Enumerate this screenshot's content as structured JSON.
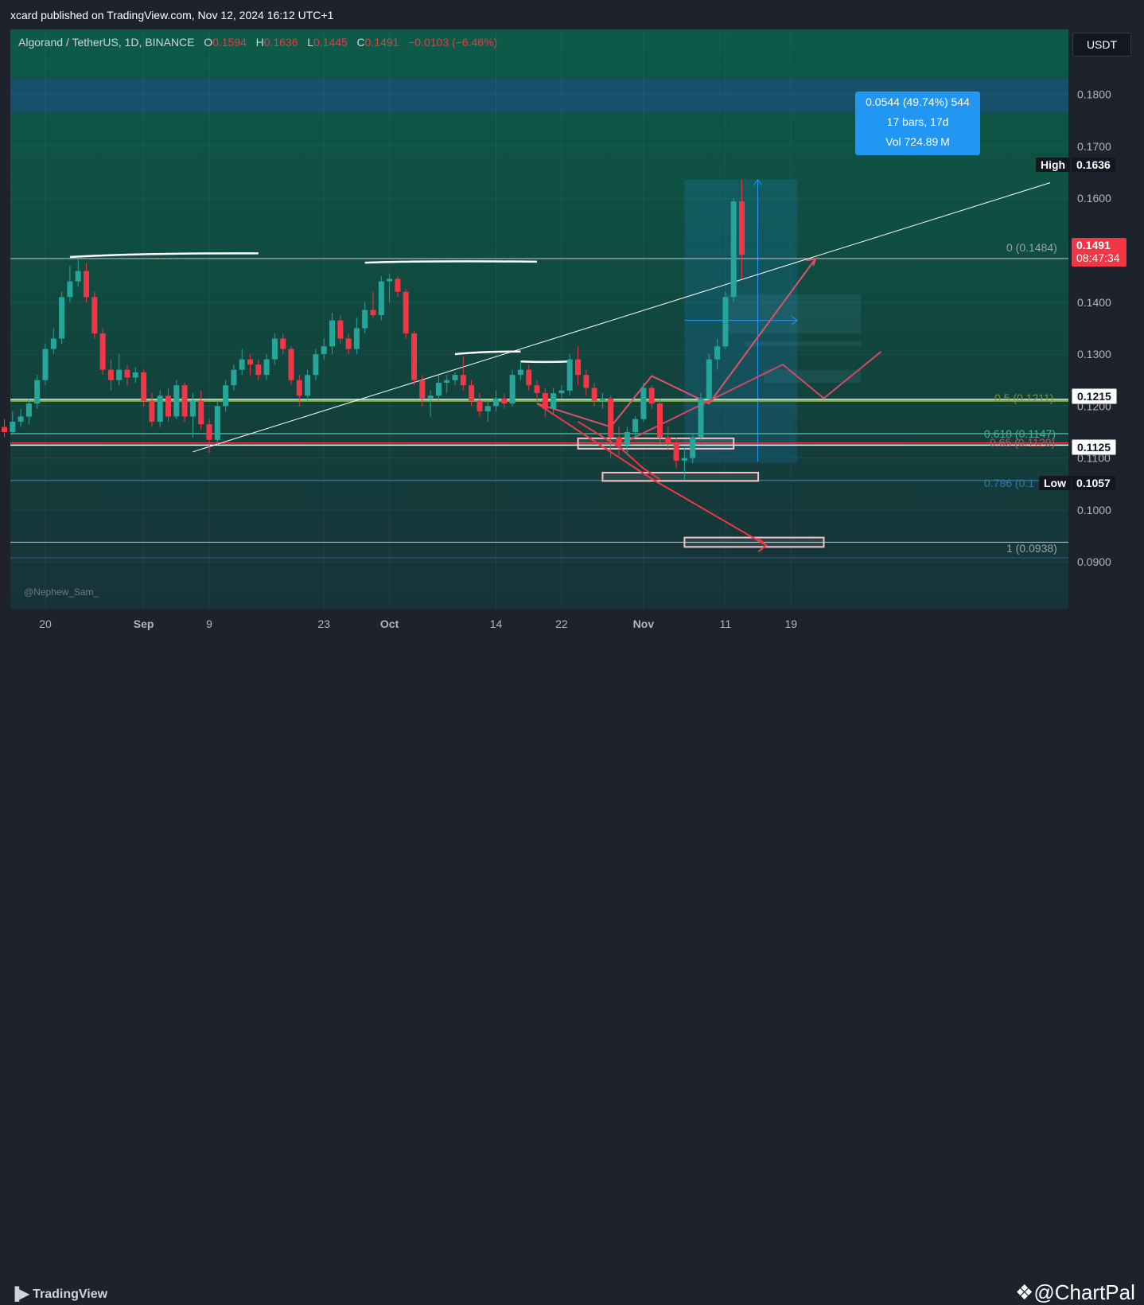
{
  "header": {
    "publisher": "xcard published on TradingView.com, Nov 12, 2024 16:12 UTC+1"
  },
  "symbol": {
    "name": "Algorand / TetherUS, 1D, BINANCE",
    "o_label": "O",
    "o": "0.1594",
    "h_label": "H",
    "h": "0.1636",
    "l_label": "L",
    "l": "0.1445",
    "c_label": "C",
    "c": "0.1491",
    "change": "−0.0103 (−6.46%)"
  },
  "currency": "USDT",
  "measure": {
    "line1": "0.0544 (49.74%) 544",
    "line2": "17 bars, 17d",
    "line3": "Vol 724.89 M"
  },
  "tags": {
    "high_label": "High",
    "high_value": "0.1636",
    "last_price": "0.1491",
    "countdown": "08:47:34",
    "level_1215": "0.1215",
    "level_1125": "0.1125",
    "low_label": "Low",
    "low_value": "0.1057"
  },
  "fib": {
    "f0": "0 (0.1484)",
    "f05": "0.5 (0.1211)",
    "f0618": "0.618 (0.1147)",
    "f065": "0.65 (0.1129)",
    "f0786": "0.786 (0.1",
    "f1": "1 (0.0938)"
  },
  "watermark": "@Nephew_Sam_",
  "footer": {
    "logo": "TradingView",
    "brand": "@ChartPal"
  },
  "colors": {
    "up": "#26a69a",
    "down": "#f23645",
    "accent": "#2196f3"
  },
  "chart_data": {
    "type": "candlestick",
    "title": "Algorand / TetherUS, 1D, BINANCE",
    "price_range": [
      0.081,
      0.1925
    ],
    "y_ticks": [
      "0.1800",
      "0.1700",
      "0.1600",
      "0.1400",
      "0.1300",
      "0.1200",
      "0.1100",
      "0.1000",
      "0.0900"
    ],
    "x_ticks": [
      {
        "label": "20",
        "date": "2024-08-20"
      },
      {
        "label": "Sep",
        "date": "2024-09-01"
      },
      {
        "label": "9",
        "date": "2024-09-09"
      },
      {
        "label": "23",
        "date": "2024-09-23"
      },
      {
        "label": "Oct",
        "date": "2024-10-01"
      },
      {
        "label": "14",
        "date": "2024-10-14"
      },
      {
        "label": "22",
        "date": "2024-10-22"
      },
      {
        "label": "Nov",
        "date": "2024-11-01"
      },
      {
        "label": "11",
        "date": "2024-11-11"
      },
      {
        "label": "19",
        "date": "2024-11-19"
      }
    ],
    "candles": [
      {
        "d": "2024-08-15",
        "o": 0.116,
        "h": 0.1175,
        "l": 0.114,
        "c": 0.115
      },
      {
        "d": "2024-08-16",
        "o": 0.115,
        "h": 0.119,
        "l": 0.1145,
        "c": 0.117
      },
      {
        "d": "2024-08-17",
        "o": 0.117,
        "h": 0.1195,
        "l": 0.116,
        "c": 0.118
      },
      {
        "d": "2024-08-18",
        "o": 0.118,
        "h": 0.1215,
        "l": 0.1165,
        "c": 0.1205
      },
      {
        "d": "2024-08-19",
        "o": 0.1205,
        "h": 0.126,
        "l": 0.1195,
        "c": 0.125
      },
      {
        "d": "2024-08-20",
        "o": 0.125,
        "h": 0.132,
        "l": 0.124,
        "c": 0.131
      },
      {
        "d": "2024-08-21",
        "o": 0.131,
        "h": 0.135,
        "l": 0.13,
        "c": 0.133
      },
      {
        "d": "2024-08-22",
        "o": 0.133,
        "h": 0.142,
        "l": 0.132,
        "c": 0.141
      },
      {
        "d": "2024-08-23",
        "o": 0.141,
        "h": 0.147,
        "l": 0.14,
        "c": 0.144
      },
      {
        "d": "2024-08-24",
        "o": 0.144,
        "h": 0.1484,
        "l": 0.143,
        "c": 0.146
      },
      {
        "d": "2024-08-25",
        "o": 0.146,
        "h": 0.1475,
        "l": 0.14,
        "c": 0.141
      },
      {
        "d": "2024-08-26",
        "o": 0.141,
        "h": 0.142,
        "l": 0.133,
        "c": 0.134
      },
      {
        "d": "2024-08-27",
        "o": 0.134,
        "h": 0.135,
        "l": 0.126,
        "c": 0.127
      },
      {
        "d": "2024-08-28",
        "o": 0.127,
        "h": 0.129,
        "l": 0.123,
        "c": 0.125
      },
      {
        "d": "2024-08-29",
        "o": 0.125,
        "h": 0.13,
        "l": 0.124,
        "c": 0.127
      },
      {
        "d": "2024-08-30",
        "o": 0.127,
        "h": 0.128,
        "l": 0.124,
        "c": 0.1255
      },
      {
        "d": "2024-08-31",
        "o": 0.1255,
        "h": 0.1275,
        "l": 0.1245,
        "c": 0.1265
      },
      {
        "d": "2024-09-01",
        "o": 0.1265,
        "h": 0.127,
        "l": 0.12,
        "c": 0.121
      },
      {
        "d": "2024-09-02",
        "o": 0.121,
        "h": 0.1225,
        "l": 0.116,
        "c": 0.117
      },
      {
        "d": "2024-09-03",
        "o": 0.117,
        "h": 0.123,
        "l": 0.116,
        "c": 0.122
      },
      {
        "d": "2024-09-04",
        "o": 0.122,
        "h": 0.1235,
        "l": 0.117,
        "c": 0.118
      },
      {
        "d": "2024-09-05",
        "o": 0.118,
        "h": 0.125,
        "l": 0.1175,
        "c": 0.124
      },
      {
        "d": "2024-09-06",
        "o": 0.124,
        "h": 0.1245,
        "l": 0.117,
        "c": 0.118
      },
      {
        "d": "2024-09-07",
        "o": 0.118,
        "h": 0.1225,
        "l": 0.114,
        "c": 0.121
      },
      {
        "d": "2024-09-08",
        "o": 0.121,
        "h": 0.123,
        "l": 0.1155,
        "c": 0.1165
      },
      {
        "d": "2024-09-09",
        "o": 0.1165,
        "h": 0.1175,
        "l": 0.111,
        "c": 0.1135
      },
      {
        "d": "2024-09-10",
        "o": 0.1135,
        "h": 0.121,
        "l": 0.1125,
        "c": 0.12
      },
      {
        "d": "2024-09-11",
        "o": 0.12,
        "h": 0.125,
        "l": 0.119,
        "c": 0.124
      },
      {
        "d": "2024-09-12",
        "o": 0.124,
        "h": 0.128,
        "l": 0.123,
        "c": 0.127
      },
      {
        "d": "2024-09-13",
        "o": 0.127,
        "h": 0.131,
        "l": 0.126,
        "c": 0.129
      },
      {
        "d": "2024-09-14",
        "o": 0.129,
        "h": 0.13,
        "l": 0.126,
        "c": 0.128
      },
      {
        "d": "2024-09-15",
        "o": 0.128,
        "h": 0.129,
        "l": 0.125,
        "c": 0.126
      },
      {
        "d": "2024-09-16",
        "o": 0.126,
        "h": 0.13,
        "l": 0.125,
        "c": 0.129
      },
      {
        "d": "2024-09-17",
        "o": 0.129,
        "h": 0.134,
        "l": 0.128,
        "c": 0.133
      },
      {
        "d": "2024-09-18",
        "o": 0.133,
        "h": 0.134,
        "l": 0.13,
        "c": 0.131
      },
      {
        "d": "2024-09-19",
        "o": 0.131,
        "h": 0.1315,
        "l": 0.124,
        "c": 0.125
      },
      {
        "d": "2024-09-20",
        "o": 0.125,
        "h": 0.126,
        "l": 0.12,
        "c": 0.122
      },
      {
        "d": "2024-09-21",
        "o": 0.122,
        "h": 0.127,
        "l": 0.121,
        "c": 0.126
      },
      {
        "d": "2024-09-22",
        "o": 0.126,
        "h": 0.131,
        "l": 0.125,
        "c": 0.13
      },
      {
        "d": "2024-09-23",
        "o": 0.13,
        "h": 0.133,
        "l": 0.129,
        "c": 0.1315
      },
      {
        "d": "2024-09-24",
        "o": 0.1315,
        "h": 0.138,
        "l": 0.13,
        "c": 0.1365
      },
      {
        "d": "2024-09-25",
        "o": 0.1365,
        "h": 0.1375,
        "l": 0.132,
        "c": 0.133
      },
      {
        "d": "2024-09-26",
        "o": 0.133,
        "h": 0.134,
        "l": 0.13,
        "c": 0.131
      },
      {
        "d": "2024-09-27",
        "o": 0.131,
        "h": 0.137,
        "l": 0.13,
        "c": 0.135
      },
      {
        "d": "2024-09-28",
        "o": 0.135,
        "h": 0.14,
        "l": 0.134,
        "c": 0.1385
      },
      {
        "d": "2024-09-29",
        "o": 0.1385,
        "h": 0.142,
        "l": 0.137,
        "c": 0.1375
      },
      {
        "d": "2024-09-30",
        "o": 0.1375,
        "h": 0.145,
        "l": 0.1365,
        "c": 0.144
      },
      {
        "d": "2024-10-01",
        "o": 0.144,
        "h": 0.1455,
        "l": 0.14,
        "c": 0.1445
      },
      {
        "d": "2024-10-02",
        "o": 0.1445,
        "h": 0.145,
        "l": 0.141,
        "c": 0.142
      },
      {
        "d": "2024-10-03",
        "o": 0.142,
        "h": 0.1425,
        "l": 0.133,
        "c": 0.134
      },
      {
        "d": "2024-10-04",
        "o": 0.134,
        "h": 0.1345,
        "l": 0.124,
        "c": 0.125
      },
      {
        "d": "2024-10-05",
        "o": 0.125,
        "h": 0.126,
        "l": 0.12,
        "c": 0.1215
      },
      {
        "d": "2024-10-06",
        "o": 0.1215,
        "h": 0.123,
        "l": 0.118,
        "c": 0.122
      },
      {
        "d": "2024-10-07",
        "o": 0.122,
        "h": 0.126,
        "l": 0.121,
        "c": 0.1245
      },
      {
        "d": "2024-10-08",
        "o": 0.1245,
        "h": 0.126,
        "l": 0.1225,
        "c": 0.125
      },
      {
        "d": "2024-10-09",
        "o": 0.125,
        "h": 0.1265,
        "l": 0.124,
        "c": 0.126
      },
      {
        "d": "2024-10-10",
        "o": 0.126,
        "h": 0.1295,
        "l": 0.123,
        "c": 0.124
      },
      {
        "d": "2024-10-11",
        "o": 0.124,
        "h": 0.125,
        "l": 0.12,
        "c": 0.121
      },
      {
        "d": "2024-10-12",
        "o": 0.121,
        "h": 0.1225,
        "l": 0.118,
        "c": 0.119
      },
      {
        "d": "2024-10-13",
        "o": 0.119,
        "h": 0.121,
        "l": 0.117,
        "c": 0.12
      },
      {
        "d": "2024-10-14",
        "o": 0.12,
        "h": 0.123,
        "l": 0.119,
        "c": 0.1215
      },
      {
        "d": "2024-10-15",
        "o": 0.1215,
        "h": 0.1225,
        "l": 0.1195,
        "c": 0.1205
      },
      {
        "d": "2024-10-16",
        "o": 0.1205,
        "h": 0.127,
        "l": 0.12,
        "c": 0.126
      },
      {
        "d": "2024-10-17",
        "o": 0.126,
        "h": 0.1285,
        "l": 0.125,
        "c": 0.127
      },
      {
        "d": "2024-10-18",
        "o": 0.127,
        "h": 0.128,
        "l": 0.123,
        "c": 0.124
      },
      {
        "d": "2024-10-19",
        "o": 0.124,
        "h": 0.125,
        "l": 0.121,
        "c": 0.1225
      },
      {
        "d": "2024-10-20",
        "o": 0.1225,
        "h": 0.1235,
        "l": 0.118,
        "c": 0.1195
      },
      {
        "d": "2024-10-21",
        "o": 0.1195,
        "h": 0.1235,
        "l": 0.1185,
        "c": 0.1225
      },
      {
        "d": "2024-10-22",
        "o": 0.1225,
        "h": 0.124,
        "l": 0.1215,
        "c": 0.123
      },
      {
        "d": "2024-10-23",
        "o": 0.123,
        "h": 0.13,
        "l": 0.122,
        "c": 0.129
      },
      {
        "d": "2024-10-24",
        "o": 0.129,
        "h": 0.1315,
        "l": 0.124,
        "c": 0.126
      },
      {
        "d": "2024-10-25",
        "o": 0.126,
        "h": 0.127,
        "l": 0.122,
        "c": 0.1235
      },
      {
        "d": "2024-10-26",
        "o": 0.1235,
        "h": 0.1245,
        "l": 0.12,
        "c": 0.121
      },
      {
        "d": "2024-10-27",
        "o": 0.121,
        "h": 0.1225,
        "l": 0.1195,
        "c": 0.1215
      },
      {
        "d": "2024-10-28",
        "o": 0.1215,
        "h": 0.122,
        "l": 0.11,
        "c": 0.114
      },
      {
        "d": "2024-10-29",
        "o": 0.114,
        "h": 0.116,
        "l": 0.1105,
        "c": 0.1125
      },
      {
        "d": "2024-10-30",
        "o": 0.1125,
        "h": 0.116,
        "l": 0.111,
        "c": 0.115
      },
      {
        "d": "2024-10-31",
        "o": 0.115,
        "h": 0.118,
        "l": 0.114,
        "c": 0.1175
      },
      {
        "d": "2024-11-01",
        "o": 0.1175,
        "h": 0.1245,
        "l": 0.117,
        "c": 0.1235
      },
      {
        "d": "2024-11-02",
        "o": 0.1235,
        "h": 0.124,
        "l": 0.1195,
        "c": 0.1205
      },
      {
        "d": "2024-11-03",
        "o": 0.1205,
        "h": 0.1215,
        "l": 0.113,
        "c": 0.114
      },
      {
        "d": "2024-11-04",
        "o": 0.114,
        "h": 0.116,
        "l": 0.1115,
        "c": 0.113
      },
      {
        "d": "2024-11-05",
        "o": 0.113,
        "h": 0.114,
        "l": 0.108,
        "c": 0.1095
      },
      {
        "d": "2024-11-06",
        "o": 0.1095,
        "h": 0.112,
        "l": 0.1057,
        "c": 0.11
      },
      {
        "d": "2024-11-07",
        "o": 0.11,
        "h": 0.1145,
        "l": 0.109,
        "c": 0.114
      },
      {
        "d": "2024-11-08",
        "o": 0.114,
        "h": 0.1225,
        "l": 0.1135,
        "c": 0.1215
      },
      {
        "d": "2024-11-09",
        "o": 0.1215,
        "h": 0.13,
        "l": 0.121,
        "c": 0.129
      },
      {
        "d": "2024-11-10",
        "o": 0.129,
        "h": 0.133,
        "l": 0.127,
        "c": 0.1315
      },
      {
        "d": "2024-11-11",
        "o": 0.1315,
        "h": 0.142,
        "l": 0.131,
        "c": 0.141
      },
      {
        "d": "2024-11-12",
        "o": 0.141,
        "h": 0.16,
        "l": 0.14,
        "c": 0.1594
      },
      {
        "d": "2024-11-13",
        "o": 0.1594,
        "h": 0.1636,
        "l": 0.1445,
        "c": 0.1491
      }
    ]
  }
}
